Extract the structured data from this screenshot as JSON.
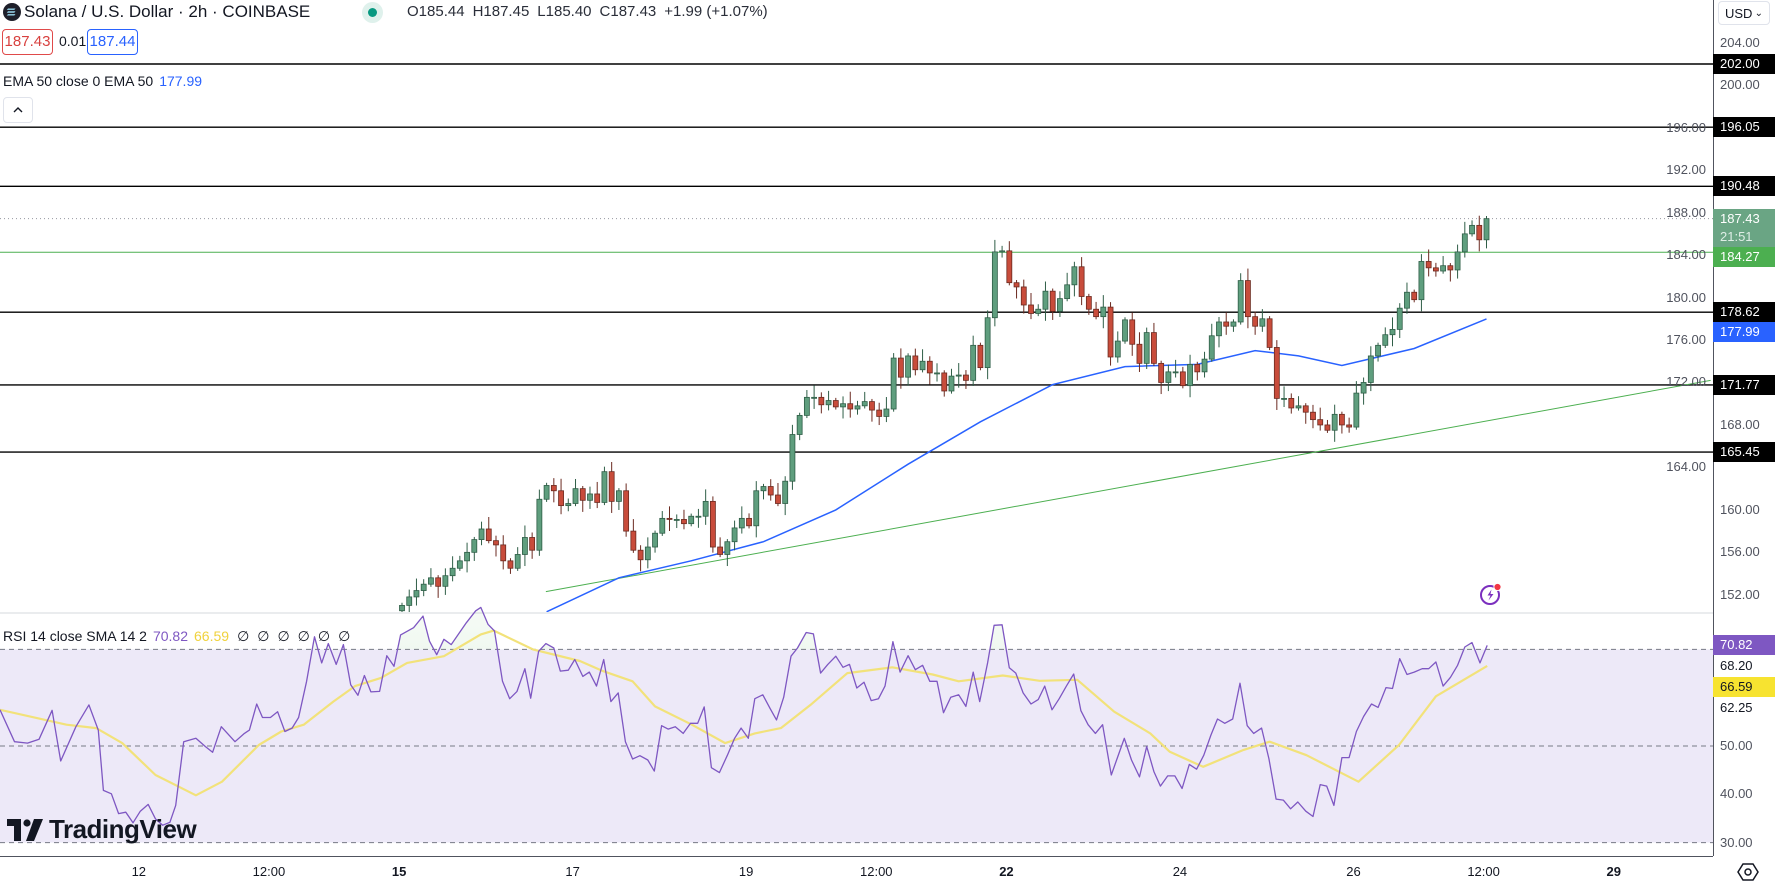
{
  "header": {
    "title": "Solana / U.S. Dollar · 2h · COINBASE",
    "ohlc": {
      "o_label": "O",
      "o": "185.44",
      "h_label": "H",
      "h": "187.45",
      "l_label": "L",
      "l": "185.40",
      "c_label": "C",
      "c": "187.43",
      "change": "+1.99 (+1.07%)"
    },
    "sell_price": "187.43",
    "spread": "0.01",
    "buy_price": "187.44"
  },
  "indicators": {
    "ema": {
      "label": "EMA 50 close 0 EMA 50",
      "value": "177.99"
    },
    "rsi": {
      "label": "RSI 14 close SMA 14 2",
      "value": "70.82",
      "sma_value": "66.59",
      "extras": [
        "∅",
        "∅",
        "∅",
        "∅",
        "∅",
        "∅"
      ]
    }
  },
  "price_axis": {
    "currency": "USD"
  },
  "branding": {
    "logo_text": "TradingView"
  },
  "colors": {
    "up": "#5f9e7e",
    "down": "#c84c3b",
    "ema": "#2962ff",
    "trend": "#4caf50",
    "rsi": "#7e57c2",
    "rsi_sma": "#f2e27a",
    "level": "#000000",
    "support": "#4caf50"
  },
  "chart_data": {
    "type": "candlestick",
    "title": "Solana / U.S. Dollar · 2h · COINBASE",
    "interval": "2h",
    "first_open": 150.5,
    "closes": [
      151,
      151.8,
      152.4,
      153,
      153.6,
      152.8,
      153.8,
      154.5,
      155.2,
      156,
      157.2,
      158.2,
      157.1,
      156.7,
      155.2,
      154.5,
      155.8,
      157.4,
      156.2,
      161,
      162.3,
      161.8,
      160.4,
      160.6,
      162,
      160.9,
      161.5,
      160.7,
      163.6,
      160.8,
      161.8,
      158,
      156.2,
      155.3,
      156.5,
      157.8,
      159.2,
      159.1,
      159.1,
      158.7,
      159.4,
      159.4,
      160.8,
      156.5,
      155.8,
      157,
      158.3,
      159.2,
      158.5,
      161.8,
      162.2,
      161.4,
      160.6,
      162.7,
      167.1,
      168.9,
      170.6,
      170.6,
      169.9,
      170.3,
      169.7,
      170,
      169.5,
      169.8,
      170.2,
      169.4,
      168.8,
      169.5,
      174.3,
      172.5,
      174.5,
      173.2,
      174,
      172.9,
      172.9,
      171.2,
      172.6,
      172.7,
      172.2,
      175.5,
      173.4,
      178.1,
      184.3,
      184.4,
      181.4,
      181,
      179.3,
      178.5,
      178.9,
      180.6,
      178.7,
      179.9,
      181.2,
      182.9,
      180.1,
      178.9,
      178.2,
      179.1,
      174.4,
      175.9,
      177.9,
      175.6,
      173.8,
      176.7,
      173.8,
      172,
      173,
      173,
      171.7,
      173.7,
      173,
      174.2,
      176.4,
      177.7,
      177.3,
      177.7,
      181.6,
      178.2,
      177.3,
      178,
      175.3,
      170.5,
      170.5,
      169.6,
      169.8,
      169.2,
      168.5,
      168,
      167.5,
      169,
      168,
      167.8,
      171,
      172,
      174.5,
      175.5,
      176.5,
      177,
      179,
      180.5,
      179.8,
      183.4,
      182.8,
      182.5,
      183,
      182.6,
      184.3,
      186,
      186.8,
      185.44,
      187.43
    ],
    "ema50": [
      [
        20,
        150.4
      ],
      [
        30,
        153.6
      ],
      [
        40,
        155.2
      ],
      [
        50,
        157
      ],
      [
        60,
        160
      ],
      [
        70,
        164.3
      ],
      [
        80,
        168.3
      ],
      [
        90,
        171.8
      ],
      [
        100,
        173.5
      ],
      [
        110,
        173.7
      ],
      [
        118,
        175.0
      ],
      [
        124,
        174.5
      ],
      [
        130,
        173.6
      ],
      [
        140,
        175.2
      ],
      [
        150,
        177.99
      ]
    ],
    "trendline": [
      [
        19.9,
        152.3
      ],
      [
        181,
        172.2
      ]
    ],
    "levels": [
      {
        "value": 202.0,
        "label": "202.00",
        "kind": "resistance"
      },
      {
        "value": 196.05,
        "label": "196.05",
        "kind": "resistance"
      },
      {
        "value": 190.48,
        "label": "190.48",
        "kind": "resistance"
      },
      {
        "value": 184.27,
        "label": "184.27",
        "kind": "support"
      },
      {
        "value": 178.62,
        "label": "178.62",
        "kind": "resistance"
      },
      {
        "value": 171.77,
        "label": "171.77",
        "kind": "resistance"
      },
      {
        "value": 165.45,
        "label": "165.45",
        "kind": "resistance"
      }
    ],
    "current_price": {
      "value": 187.43,
      "label": "187.43",
      "countdown": "21:51"
    },
    "ema_badge": {
      "value": 177.99,
      "label": "177.99"
    },
    "price_ticks": [
      "152.00",
      "156.00",
      "160.00",
      "164.00",
      "168.00",
      "172.00",
      "176.00",
      "180.00",
      "184.00",
      "188.00",
      "192.00",
      "196.00",
      "200.00",
      "204.00"
    ],
    "ylim": [
      150,
      206
    ],
    "x_ticks": [
      {
        "label": "12",
        "bar": -36.4,
        "bold": false
      },
      {
        "label": "12:00",
        "bar": -18.4,
        "bold": false
      },
      {
        "label": "15",
        "bar": -0.4,
        "bold": true
      },
      {
        "label": "17",
        "bar": 23.6,
        "bold": false
      },
      {
        "label": "19",
        "bar": 47.6,
        "bold": false
      },
      {
        "label": "12:00",
        "bar": 65.6,
        "bold": false
      },
      {
        "label": "22",
        "bar": 83.6,
        "bold": true
      },
      {
        "label": "24",
        "bar": 107.6,
        "bold": false
      },
      {
        "label": "26",
        "bar": 131.6,
        "bold": false
      },
      {
        "label": "12:00",
        "bar": 149.6,
        "bold": false
      },
      {
        "label": "29",
        "bar": 167.6,
        "bold": true
      }
    ],
    "rsi": {
      "levels": [
        70,
        50,
        30
      ],
      "ylim": [
        20,
        85
      ],
      "series": [
        [
          -55.6,
          57.5
        ],
        [
          -53.6,
          50.9
        ],
        [
          -51.8,
          50.6
        ],
        [
          -50.2,
          51.4
        ],
        [
          -48.4,
          57.4
        ],
        [
          -47.2,
          46.9
        ],
        [
          -45.1,
          54.0
        ],
        [
          -43.3,
          58.5
        ],
        [
          -42.0,
          53.3
        ],
        [
          -41.3,
          40.8
        ],
        [
          -40.2,
          40.1
        ],
        [
          -39.2,
          36.0
        ],
        [
          -38.2,
          36.3
        ],
        [
          -37.2,
          34.1
        ],
        [
          -36.2,
          36.5
        ],
        [
          -35.1,
          37.9
        ],
        [
          -34.1,
          34.9
        ],
        [
          -33.1,
          33.6
        ],
        [
          -32.1,
          34.2
        ],
        [
          -31.3,
          37.7
        ],
        [
          -30.2,
          50.9
        ],
        [
          -28.5,
          51.6
        ],
        [
          -27.2,
          49.9
        ],
        [
          -26.2,
          48.7
        ],
        [
          -25.0,
          54.0
        ],
        [
          -23.1,
          50.9
        ],
        [
          -21.8,
          52.6
        ],
        [
          -21.1,
          53.3
        ],
        [
          -20.1,
          58.7
        ],
        [
          -19.3,
          55.9
        ],
        [
          -18.2,
          55.9
        ],
        [
          -17.2,
          57.1
        ],
        [
          -16.2,
          53.0
        ],
        [
          -15.2,
          53.7
        ],
        [
          -14.3,
          55.9
        ],
        [
          -13.2,
          63.4
        ],
        [
          -12.1,
          72.6
        ],
        [
          -11.1,
          67.2
        ],
        [
          -10.2,
          71.2
        ],
        [
          -9.1,
          66.9
        ],
        [
          -8.1,
          71.0
        ],
        [
          -7.1,
          62.7
        ],
        [
          -6.1,
          60.5
        ],
        [
          -5.2,
          64.6
        ],
        [
          -4.3,
          61.2
        ],
        [
          -3.1,
          61.3
        ],
        [
          -2.1,
          68.7
        ],
        [
          -1.1,
          66.5
        ],
        [
          -0.2,
          73.0
        ],
        [
          1.6,
          74.5
        ],
        [
          2.9,
          76.9
        ],
        [
          3.8,
          71.7
        ],
        [
          4.8,
          68.9
        ],
        [
          5.8,
          72.1
        ],
        [
          6.8,
          71.0
        ],
        [
          8.9,
          75.5
        ],
        [
          10.2,
          78.0
        ],
        [
          10.9,
          78.7
        ],
        [
          11.9,
          75.2
        ],
        [
          12.8,
          73.8
        ],
        [
          13.9,
          63.4
        ],
        [
          14.9,
          59.8
        ],
        [
          15.9,
          61.3
        ],
        [
          17.0,
          66.0
        ],
        [
          17.8,
          59.9
        ],
        [
          18.9,
          69.6
        ],
        [
          19.9,
          71.2
        ],
        [
          21.0,
          70.3
        ],
        [
          21.9,
          65.5
        ],
        [
          23.0,
          65.7
        ],
        [
          23.9,
          67.9
        ],
        [
          25.0,
          64.4
        ],
        [
          25.9,
          65.3
        ],
        [
          26.9,
          62.4
        ],
        [
          27.9,
          67.9
        ],
        [
          28.9,
          59.2
        ],
        [
          29.9,
          61.0
        ],
        [
          30.9,
          50.9
        ],
        [
          31.9,
          47.3
        ],
        [
          32.9,
          48.0
        ],
        [
          34.0,
          47.1
        ],
        [
          34.9,
          44.8
        ],
        [
          35.9,
          54.2
        ],
        [
          36.8,
          53.5
        ],
        [
          37.8,
          54.0
        ],
        [
          38.9,
          52.6
        ],
        [
          39.9,
          54.7
        ],
        [
          40.9,
          54.7
        ],
        [
          41.8,
          58.1
        ],
        [
          42.8,
          45.5
        ],
        [
          43.9,
          44.5
        ],
        [
          45.0,
          48.1
        ],
        [
          46.0,
          51.6
        ],
        [
          46.9,
          53.7
        ],
        [
          47.9,
          51.6
        ],
        [
          48.8,
          59.8
        ],
        [
          49.9,
          60.6
        ],
        [
          50.9,
          57.8
        ],
        [
          51.8,
          55.4
        ],
        [
          52.8,
          60.1
        ],
        [
          53.8,
          68.6
        ],
        [
          54.7,
          70.3
        ],
        [
          55.9,
          73.5
        ],
        [
          56.9,
          73.2
        ],
        [
          57.9,
          65.1
        ],
        [
          58.9,
          66.9
        ],
        [
          60.0,
          68.6
        ],
        [
          61.0,
          66.3
        ],
        [
          61.9,
          66.9
        ],
        [
          62.9,
          62.0
        ],
        [
          63.9,
          63.2
        ],
        [
          64.9,
          59.4
        ],
        [
          65.9,
          59.8
        ],
        [
          66.8,
          62.4
        ],
        [
          67.9,
          71.6
        ],
        [
          68.9,
          65.3
        ],
        [
          70.0,
          68.7
        ],
        [
          71.0,
          65.8
        ],
        [
          72.0,
          66.7
        ],
        [
          73.0,
          63.4
        ],
        [
          74.0,
          63.4
        ],
        [
          74.9,
          56.9
        ],
        [
          75.9,
          60.1
        ],
        [
          77.0,
          60.6
        ],
        [
          78.0,
          58.2
        ],
        [
          79.0,
          65.3
        ],
        [
          79.9,
          59.2
        ],
        [
          81.0,
          67.2
        ],
        [
          81.9,
          75.0
        ],
        [
          83.0,
          75.1
        ],
        [
          84.0,
          66.2
        ],
        [
          84.9,
          65.1
        ],
        [
          85.9,
          61.0
        ],
        [
          87.0,
          58.7
        ],
        [
          88.0,
          59.6
        ],
        [
          88.9,
          62.4
        ],
        [
          89.9,
          57.5
        ],
        [
          90.9,
          59.8
        ],
        [
          91.9,
          62.4
        ],
        [
          92.9,
          64.9
        ],
        [
          93.9,
          57.3
        ],
        [
          94.9,
          54.4
        ],
        [
          95.9,
          52.6
        ],
        [
          96.9,
          54.4
        ],
        [
          98.1,
          44.0
        ],
        [
          99.0,
          47.8
        ],
        [
          99.9,
          51.6
        ],
        [
          100.9,
          47.1
        ],
        [
          102.0,
          43.6
        ],
        [
          103.0,
          49.9
        ],
        [
          104.0,
          44.7
        ],
        [
          104.9,
          41.7
        ],
        [
          105.9,
          43.8
        ],
        [
          106.9,
          43.8
        ],
        [
          107.9,
          41.2
        ],
        [
          108.9,
          46.2
        ],
        [
          109.9,
          45.2
        ],
        [
          110.9,
          48.1
        ],
        [
          111.9,
          52.3
        ],
        [
          112.8,
          55.6
        ],
        [
          113.8,
          54.7
        ],
        [
          114.9,
          55.6
        ],
        [
          115.9,
          63.0
        ],
        [
          116.9,
          54.2
        ],
        [
          117.8,
          52.6
        ],
        [
          118.9,
          53.7
        ],
        [
          119.9,
          47.4
        ],
        [
          120.9,
          39.0
        ],
        [
          121.9,
          38.8
        ],
        [
          122.9,
          37.0
        ],
        [
          123.9,
          38.4
        ],
        [
          125.0,
          36.5
        ],
        [
          126.0,
          35.4
        ],
        [
          127.0,
          42.0
        ],
        [
          127.9,
          41.7
        ],
        [
          128.9,
          37.7
        ],
        [
          130.0,
          47.6
        ],
        [
          131.0,
          47.6
        ],
        [
          132.0,
          53.0
        ],
        [
          133.0,
          56.1
        ],
        [
          134.1,
          58.7
        ],
        [
          135.0,
          58.0
        ],
        [
          136.1,
          62.1
        ],
        [
          137.0,
          61.9
        ],
        [
          138.0,
          68.1
        ],
        [
          139.0,
          64.8
        ],
        [
          140.0,
          65.3
        ],
        [
          141.1,
          66.0
        ],
        [
          142.0,
          66.0
        ],
        [
          143.0,
          67.4
        ],
        [
          144.0,
          62.4
        ],
        [
          145.0,
          64.2
        ],
        [
          146.0,
          66.7
        ],
        [
          147.0,
          70.5
        ],
        [
          148.0,
          71.4
        ],
        [
          149.1,
          67.2
        ],
        [
          150.1,
          70.82
        ]
      ],
      "sma": [
        [
          -55.6,
          57.5
        ],
        [
          -46.4,
          54.4
        ],
        [
          -42.3,
          53.7
        ],
        [
          -38.7,
          50.6
        ],
        [
          -34.1,
          44.0
        ],
        [
          -28.5,
          39.8
        ],
        [
          -24.9,
          42.6
        ],
        [
          -19.8,
          50.2
        ],
        [
          -16.7,
          53.0
        ],
        [
          -13.6,
          54.4
        ],
        [
          -9.5,
          59.2
        ],
        [
          -6.5,
          62.4
        ],
        [
          -2.9,
          64.1
        ],
        [
          0.7,
          67.2
        ],
        [
          5.8,
          68.6
        ],
        [
          10.9,
          73.1
        ],
        [
          12.7,
          73.9
        ],
        [
          18.1,
          70.0
        ],
        [
          24.6,
          67.6
        ],
        [
          27.8,
          65.5
        ],
        [
          31.9,
          63.4
        ],
        [
          35,
          58.2
        ],
        [
          40.1,
          54.4
        ],
        [
          44.7,
          50.6
        ],
        [
          48.8,
          52.6
        ],
        [
          52.4,
          53.7
        ],
        [
          56.5,
          58.5
        ],
        [
          61.6,
          65.1
        ],
        [
          67.8,
          66.3
        ],
        [
          73.4,
          64.8
        ],
        [
          77,
          63.4
        ],
        [
          83.1,
          64.6
        ],
        [
          88.2,
          63.5
        ],
        [
          93.4,
          63.7
        ],
        [
          98.5,
          57.1
        ],
        [
          103.5,
          52.6
        ],
        [
          106.2,
          48.8
        ],
        [
          110.8,
          45.7
        ],
        [
          116.4,
          49.2
        ],
        [
          120,
          50.9
        ],
        [
          125.1,
          48.1
        ],
        [
          132.3,
          42.6
        ],
        [
          137.9,
          50.2
        ],
        [
          143,
          60.3
        ],
        [
          150.1,
          66.59
        ]
      ],
      "axis_labels": [
        {
          "label": "70.82",
          "value": 70.82,
          "style": "rsi"
        },
        {
          "label": "68.20",
          "value": 68.2,
          "style": "text"
        },
        {
          "label": "66.59",
          "value": 66.59,
          "style": "sma"
        },
        {
          "label": "62.25",
          "value": 62.25,
          "style": "text"
        },
        {
          "label": "50.00",
          "value": 50,
          "style": "tick"
        },
        {
          "label": "40.00",
          "value": 40,
          "style": "tick"
        },
        {
          "label": "30.00",
          "value": 30,
          "style": "tick"
        }
      ]
    }
  }
}
